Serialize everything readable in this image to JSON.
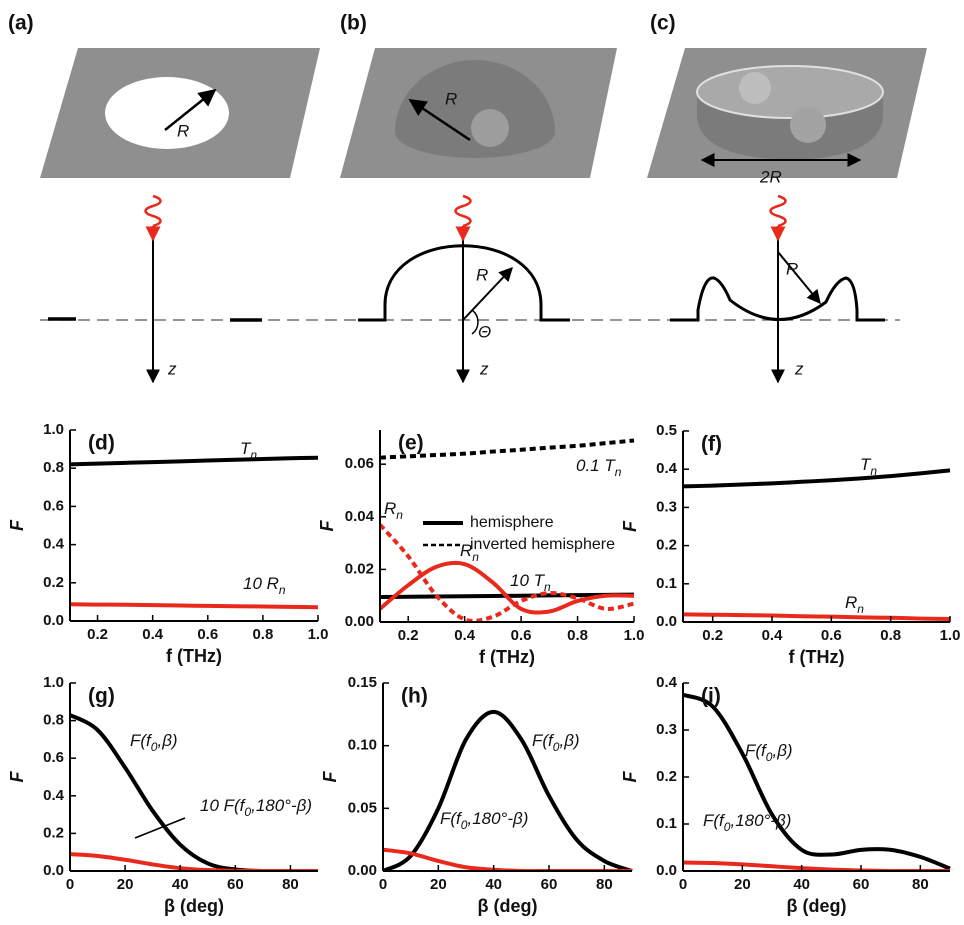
{
  "diagrams": [
    {
      "label": "(a)",
      "texts": [
        "R",
        "z"
      ]
    },
    {
      "label": "(b)",
      "texts": [
        "R",
        "R",
        "Θ",
        "z"
      ]
    },
    {
      "label": "(c)",
      "texts": [
        "2R",
        "R",
        "z"
      ]
    }
  ],
  "chart_data": [
    {
      "type": "line",
      "label": "(d)",
      "xlabel": "f (THz)",
      "ylabel": "F",
      "x": [
        0.1,
        0.2,
        0.3,
        0.4,
        0.5,
        0.6,
        0.7,
        0.8,
        0.9,
        1.0
      ],
      "xlim": [
        0.1,
        1.0
      ],
      "xticks": [
        0.2,
        0.4,
        0.6,
        0.8,
        {
          "value": 1,
          "label": "1.0"
        }
      ],
      "ylim": [
        0,
        1
      ],
      "yticks": [
        {
          "value": 0,
          "label": "0.0"
        },
        0.2,
        0.4,
        0.6,
        0.8,
        {
          "value": 1,
          "label": "1.0"
        }
      ],
      "series": [
        {
          "color": "#000000",
          "dash": false,
          "values": [
            0.82,
            0.824,
            0.828,
            0.832,
            0.836,
            0.84,
            0.844,
            0.848,
            0.852,
            0.855
          ]
        },
        {
          "color": "#e8291c",
          "dash": false,
          "values": [
            0.088,
            0.086,
            0.085,
            0.083,
            0.081,
            0.079,
            0.077,
            0.076,
            0.074,
            0.072
          ]
        }
      ],
      "annotations": [
        {
          "text": "T",
          "sub": "n"
        },
        {
          "text": "10  R",
          "sub": "n"
        }
      ]
    },
    {
      "type": "line",
      "label": "(e)",
      "xlabel": "f (THz)",
      "ylabel": "F",
      "x": [
        0.1,
        0.2,
        0.3,
        0.4,
        0.5,
        0.6,
        0.7,
        0.8,
        0.9,
        1.0
      ],
      "xlim": [
        0.1,
        1.0
      ],
      "xticks": [
        0.2,
        0.4,
        0.6,
        0.8,
        {
          "value": 1,
          "label": "1.0"
        }
      ],
      "ylim": [
        0,
        0.073
      ],
      "yticks": [
        {
          "value": 0,
          "label": "0.00"
        },
        {
          "value": 0.02,
          "label": "0.02"
        },
        {
          "value": 0.04,
          "label": "0.04"
        },
        {
          "value": 0.06,
          "label": "0.06"
        }
      ],
      "series": [
        {
          "color": "#000000",
          "dash": true,
          "values": [
            0.0625,
            0.063,
            0.0635,
            0.064,
            0.0648,
            0.0655,
            0.0663,
            0.067,
            0.068,
            0.069
          ]
        },
        {
          "color": "#000000",
          "dash": false,
          "values": [
            0.0095,
            0.0096,
            0.0097,
            0.0098,
            0.0099,
            0.01,
            0.0101,
            0.0102,
            0.0103,
            0.0104
          ]
        },
        {
          "color": "#e8291c",
          "dash": false,
          "values": [
            0.005,
            0.014,
            0.021,
            0.022,
            0.015,
            0.005,
            0.004,
            0.008,
            0.01,
            0.01
          ]
        },
        {
          "color": "#e8291c",
          "dash": true,
          "values": [
            0.037,
            0.025,
            0.01,
            0.001,
            0.002,
            0.008,
            0.011,
            0.009,
            0.005,
            0.007
          ]
        }
      ],
      "legend": [
        {
          "name": "hemisphere",
          "dash": false
        },
        {
          "name": "inverted hemisphere",
          "dash": true
        }
      ],
      "annotations": [
        {
          "text": "0.1  T",
          "sub": "n"
        },
        {
          "text": "R",
          "sub": "n"
        },
        {
          "text": "R",
          "sub": "n"
        },
        {
          "text": "10  T",
          "sub": "n"
        }
      ]
    },
    {
      "type": "line",
      "label": "(f)",
      "xlabel": "f (THz)",
      "ylabel": "F",
      "x": [
        0.1,
        0.2,
        0.3,
        0.4,
        0.5,
        0.6,
        0.7,
        0.8,
        0.9,
        1.0
      ],
      "xlim": [
        0.1,
        1.0
      ],
      "xticks": [
        0.2,
        0.4,
        0.6,
        0.8,
        {
          "value": 1,
          "label": "1.0"
        }
      ],
      "ylim": [
        0,
        0.5
      ],
      "yticks": [
        {
          "value": 0,
          "label": "0.0"
        },
        0.1,
        0.2,
        0.3,
        0.4,
        0.5
      ],
      "series": [
        {
          "color": "#000000",
          "dash": false,
          "values": [
            0.355,
            0.357,
            0.36,
            0.363,
            0.367,
            0.371,
            0.376,
            0.382,
            0.389,
            0.397
          ]
        },
        {
          "color": "#e8291c",
          "dash": false,
          "values": [
            0.02,
            0.019,
            0.018,
            0.017,
            0.015,
            0.014,
            0.012,
            0.011,
            0.009,
            0.008
          ]
        }
      ],
      "annotations": [
        {
          "text": "T",
          "sub": "n"
        },
        {
          "text": "R",
          "sub": "n"
        }
      ]
    },
    {
      "type": "line",
      "label": "(g)",
      "xlabel": "β (deg)",
      "ylabel": "F",
      "x": [
        0,
        10,
        20,
        30,
        40,
        50,
        60,
        70,
        80,
        90
      ],
      "xlim": [
        0,
        90
      ],
      "xticks": [
        0,
        20,
        40,
        60,
        80
      ],
      "ylim": [
        0,
        1
      ],
      "yticks": [
        {
          "value": 0,
          "label": "0.0"
        },
        0.2,
        0.4,
        0.6,
        0.8,
        {
          "value": 1,
          "label": "1.0"
        }
      ],
      "series": [
        {
          "color": "#000000",
          "dash": false,
          "values": [
            0.83,
            0.75,
            0.55,
            0.32,
            0.14,
            0.04,
            0.008,
            0,
            0,
            0
          ]
        },
        {
          "color": "#e8291c",
          "dash": false,
          "values": [
            0.09,
            0.08,
            0.06,
            0.035,
            0.015,
            0.005,
            0.001,
            0,
            0,
            0
          ]
        }
      ],
      "annotations": [
        {
          "text": "F(f",
          "sub": "0",
          "rest": ",β)"
        },
        {
          "text": "10  F(f",
          "sub": "0",
          "rest": ",180°-β)"
        }
      ]
    },
    {
      "type": "line",
      "label": "(h)",
      "xlabel": "β (deg)",
      "ylabel": "F",
      "x": [
        0,
        10,
        20,
        30,
        40,
        50,
        60,
        70,
        80,
        90
      ],
      "xlim": [
        0,
        90
      ],
      "xticks": [
        0,
        20,
        40,
        60,
        80
      ],
      "ylim": [
        0,
        0.15
      ],
      "yticks": [
        {
          "value": 0,
          "label": "0.00"
        },
        0.05,
        {
          "value": 0.1,
          "label": "0.10"
        },
        0.15
      ],
      "series": [
        {
          "color": "#000000",
          "dash": false,
          "values": [
            0,
            0.012,
            0.05,
            0.105,
            0.127,
            0.105,
            0.06,
            0.025,
            0.008,
            0
          ]
        },
        {
          "color": "#e8291c",
          "dash": false,
          "values": [
            0.017,
            0.014,
            0.008,
            0.003,
            0.001,
            0,
            0,
            0,
            0,
            0
          ]
        }
      ],
      "annotations": [
        {
          "text": "F(f",
          "sub": "0",
          "rest": ",β)"
        },
        {
          "text": "F(f",
          "sub": "0",
          "rest": ",180°-β)"
        }
      ]
    },
    {
      "type": "line",
      "label": "(i)",
      "xlabel": "β (deg)",
      "ylabel": "F",
      "x": [
        0,
        10,
        20,
        30,
        40,
        50,
        60,
        70,
        80,
        90
      ],
      "xlim": [
        0,
        90
      ],
      "xticks": [
        0,
        20,
        40,
        60,
        80
      ],
      "ylim": [
        0,
        0.4
      ],
      "yticks": [
        {
          "value": 0,
          "label": "0.0"
        },
        0.1,
        0.2,
        0.3,
        0.4
      ],
      "series": [
        {
          "color": "#000000",
          "dash": false,
          "values": [
            0.375,
            0.35,
            0.25,
            0.12,
            0.045,
            0.035,
            0.045,
            0.045,
            0.03,
            0.005
          ]
        },
        {
          "color": "#e8291c",
          "dash": false,
          "values": [
            0.018,
            0.017,
            0.014,
            0.01,
            0.006,
            0.003,
            0.001,
            0,
            0,
            0
          ]
        }
      ],
      "annotations": [
        {
          "text": "F(f",
          "sub": "0",
          "rest": ",β)"
        },
        {
          "text": "F(f",
          "sub": "0",
          "rest": ",180°-β)"
        }
      ]
    }
  ]
}
